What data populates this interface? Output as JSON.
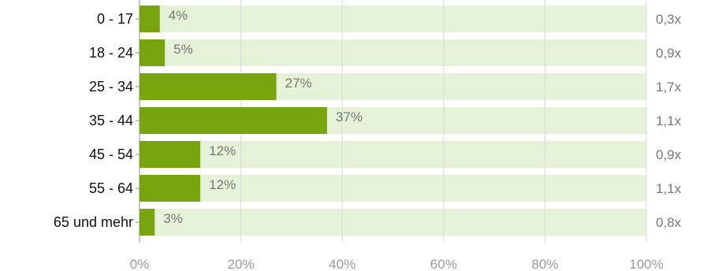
{
  "chart_data": {
    "type": "bar",
    "orientation": "horizontal",
    "categories": [
      "0 - 17",
      "18 - 24",
      "25 - 34",
      "35 - 44",
      "45 - 54",
      "55 - 64",
      "65 und mehr"
    ],
    "values": [
      4,
      5,
      27,
      37,
      12,
      12,
      3
    ],
    "value_labels": [
      "4%",
      "5%",
      "27%",
      "37%",
      "12%",
      "12%",
      "3%"
    ],
    "ratios": [
      "0,3x",
      "0,9x",
      "1,7x",
      "1,1x",
      "0,9x",
      "1,1x",
      "0,8x"
    ],
    "xlim": [
      0,
      100
    ],
    "x_ticks": [
      0,
      20,
      40,
      60,
      80,
      100
    ],
    "x_tick_labels": [
      "0%",
      "20%",
      "40%",
      "60%",
      "80%",
      "100%"
    ],
    "title": "",
    "xlabel": "",
    "ylabel": "",
    "grid": true,
    "legend": "none",
    "colors": {
      "bar": "#78a40e",
      "track": "#e6f2d7",
      "grid": "#d9d9d9",
      "axis": "#8c8c8c"
    }
  }
}
